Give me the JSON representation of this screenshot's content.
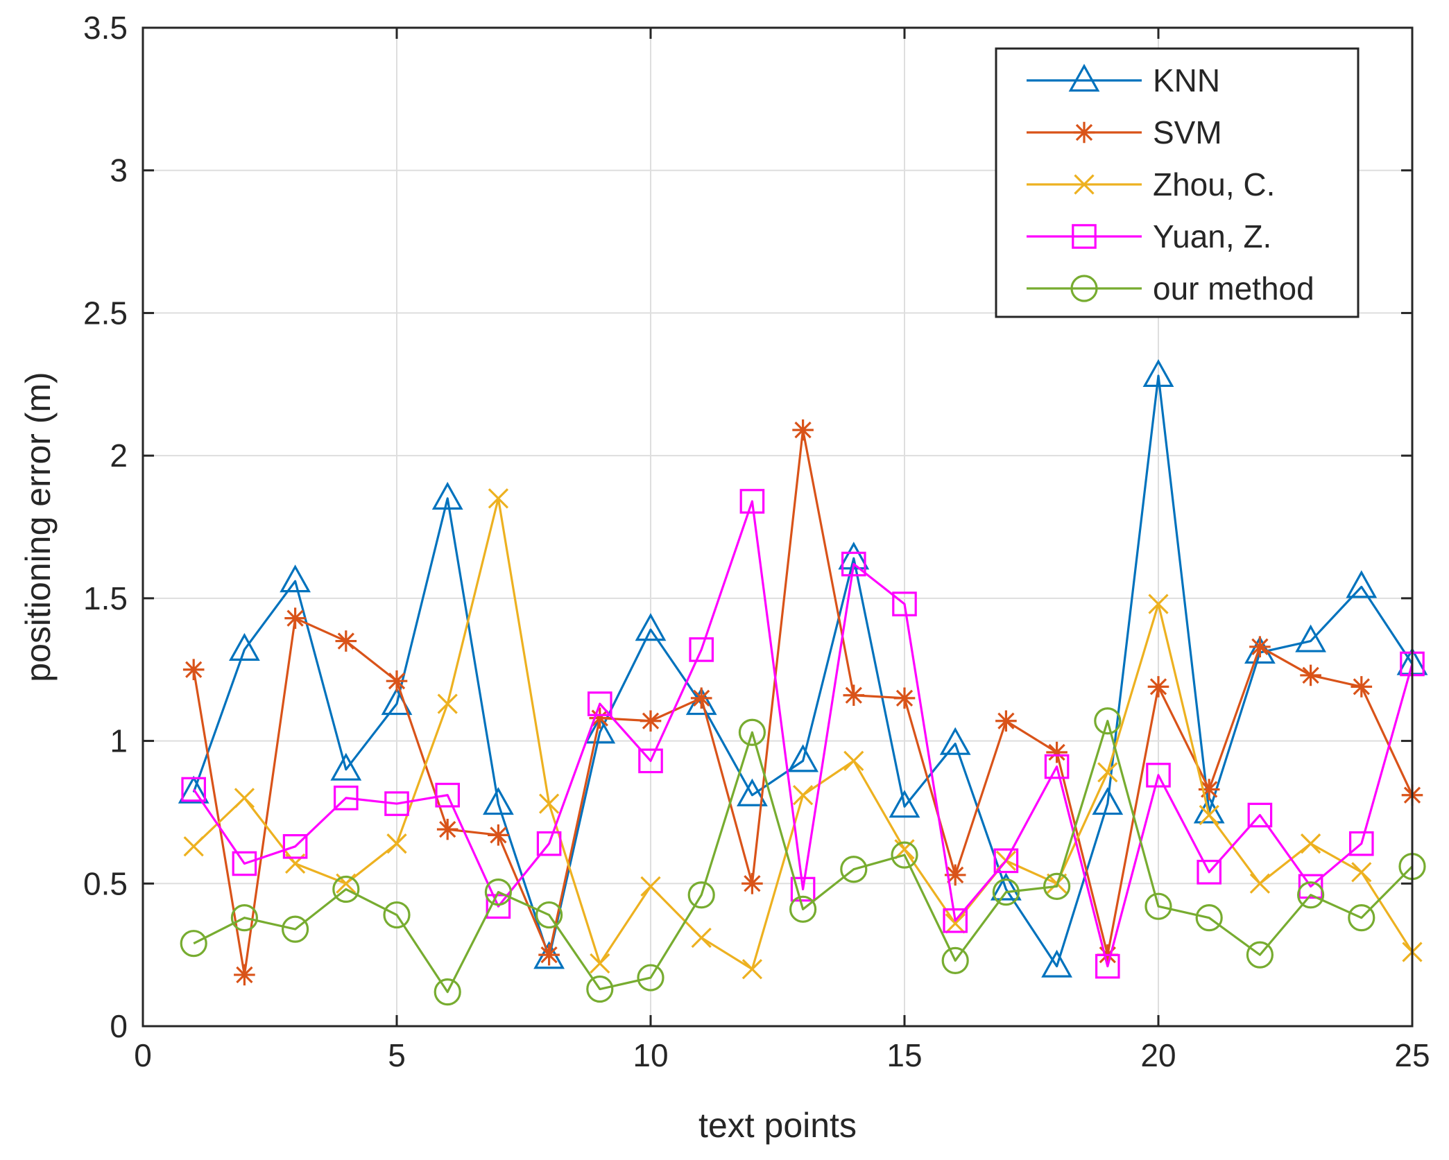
{
  "chart_data": {
    "type": "line",
    "title": "",
    "xlabel": "text points",
    "ylabel": "positioning error (m)",
    "xlim": [
      0,
      25
    ],
    "ylim": [
      0,
      3.5
    ],
    "xticks": [
      0,
      5,
      10,
      15,
      20,
      25
    ],
    "yticks": [
      0,
      0.5,
      1,
      1.5,
      2,
      2.5,
      3,
      3.5
    ],
    "xtick_labels": [
      "0",
      "5",
      "10",
      "15",
      "20",
      "25"
    ],
    "ytick_labels": [
      "0",
      "0.5",
      "1",
      "1.5",
      "2",
      "2.5",
      "3",
      "3.5"
    ],
    "grid": true,
    "legend_position": "top-right",
    "x": [
      1,
      2,
      3,
      4,
      5,
      6,
      7,
      8,
      9,
      10,
      11,
      12,
      13,
      14,
      15,
      16,
      17,
      18,
      19,
      20,
      21,
      22,
      23,
      24,
      25
    ],
    "series": [
      {
        "name": "KNN",
        "color": "#0072BD",
        "marker": "triangle",
        "values": [
          0.82,
          1.32,
          1.56,
          0.9,
          1.13,
          1.85,
          0.78,
          0.24,
          1.03,
          1.39,
          1.13,
          0.81,
          0.93,
          1.64,
          0.77,
          0.99,
          0.48,
          0.21,
          0.78,
          2.28,
          0.75,
          1.31,
          1.35,
          1.54,
          1.27
        ]
      },
      {
        "name": "SVM",
        "color": "#D95319",
        "marker": "asterisk",
        "values": [
          1.25,
          0.18,
          1.43,
          1.35,
          1.21,
          0.69,
          0.67,
          0.25,
          1.08,
          1.07,
          1.15,
          0.5,
          2.09,
          1.16,
          1.15,
          0.53,
          1.07,
          0.96,
          0.25,
          1.19,
          0.83,
          1.33,
          1.23,
          1.19,
          0.81
        ]
      },
      {
        "name": "Zhou, C.",
        "color": "#EDB120",
        "marker": "x",
        "values": [
          0.63,
          0.8,
          0.57,
          0.5,
          0.64,
          1.13,
          1.85,
          0.78,
          0.22,
          0.49,
          0.31,
          0.2,
          0.81,
          0.93,
          0.62,
          0.36,
          0.58,
          0.5,
          0.89,
          1.48,
          0.74,
          0.5,
          0.64,
          0.54,
          0.26
        ]
      },
      {
        "name": "Yuan, Z.",
        "color": "#FF00FF",
        "marker": "square",
        "values": [
          0.83,
          0.57,
          0.63,
          0.8,
          0.78,
          0.81,
          0.42,
          0.64,
          1.13,
          0.93,
          1.32,
          1.84,
          0.48,
          1.62,
          1.48,
          0.37,
          0.58,
          0.91,
          0.21,
          0.88,
          0.54,
          0.74,
          0.49,
          0.64,
          1.27
        ]
      },
      {
        "name": "our method",
        "color": "#77AC30",
        "marker": "circle",
        "values": [
          0.29,
          0.38,
          0.34,
          0.48,
          0.39,
          0.12,
          0.47,
          0.39,
          0.13,
          0.17,
          0.46,
          1.03,
          0.41,
          0.55,
          0.6,
          0.23,
          0.47,
          0.49,
          1.07,
          0.42,
          0.38,
          0.25,
          0.46,
          0.38,
          0.56
        ]
      }
    ]
  }
}
